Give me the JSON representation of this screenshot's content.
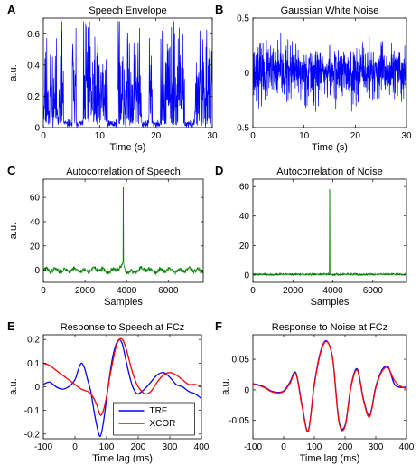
{
  "chart_data": [
    {
      "panel": "A",
      "type": "line",
      "title": "Speech Envelope",
      "xlabel": "Time (s)",
      "ylabel": "a.u.",
      "xlim": [
        0,
        30
      ],
      "ylim": [
        0,
        0.7
      ],
      "xticks": [
        0,
        10,
        20,
        30
      ],
      "yticks": [
        0,
        0.2,
        0.4,
        0.6
      ],
      "series": [
        {
          "color": "#0000ff",
          "kind": "envelope",
          "n": 700,
          "seed": 11,
          "amplitude": 0.6
        }
      ]
    },
    {
      "panel": "B",
      "type": "line",
      "title": "Gaussian White Noise",
      "xlabel": "Time (s)",
      "ylabel": "",
      "xlim": [
        0,
        30
      ],
      "ylim": [
        -0.5,
        0.5
      ],
      "xticks": [
        0,
        10,
        20,
        30
      ],
      "yticks": [
        -0.5,
        0,
        0.5
      ],
      "series": [
        {
          "color": "#0000ff",
          "kind": "noise",
          "n": 900,
          "seed": 23,
          "amplitude": 0.12
        }
      ]
    },
    {
      "panel": "C",
      "type": "line",
      "title": "Autocorrelation of Speech",
      "xlabel": "Samples",
      "ylabel": "a.u.",
      "xlim": [
        0,
        7680
      ],
      "ylim": [
        -10,
        75
      ],
      "xticks": [
        0,
        2000,
        4000,
        6000
      ],
      "yticks": [
        0,
        20,
        40,
        60
      ],
      "series": [
        {
          "color": "#007f00",
          "kind": "autocorr-speech",
          "n": 700,
          "seed": 37,
          "peak": 68,
          "center": 3840
        }
      ]
    },
    {
      "panel": "D",
      "type": "line",
      "title": "Autocorrelation of Noise",
      "xlabel": "Samples",
      "ylabel": "",
      "xlim": [
        0,
        7680
      ],
      "ylim": [
        -5,
        65
      ],
      "xticks": [
        0,
        2000,
        4000,
        6000
      ],
      "yticks": [
        0,
        20,
        40,
        60
      ],
      "series": [
        {
          "color": "#007f00",
          "kind": "autocorr-noise",
          "n": 700,
          "seed": 41,
          "peak": 58,
          "center": 3840
        }
      ]
    },
    {
      "panel": "E",
      "type": "line",
      "title": "Response to Speech at FCz",
      "xlabel": "Time lag (ms)",
      "ylabel": "a.u.",
      "xlim": [
        -100,
        400
      ],
      "ylim": [
        -0.22,
        0.22
      ],
      "xticks": [
        -100,
        0,
        100,
        200,
        300,
        400
      ],
      "yticks": [
        -0.2,
        -0.1,
        0,
        0.1,
        0.2
      ],
      "legend": {
        "position": "lower-center",
        "entries": [
          "TRF",
          "XCOR"
        ]
      },
      "series": [
        {
          "name": "TRF",
          "color": "#0000ff",
          "x": [
            -100,
            -80,
            -60,
            -40,
            -20,
            0,
            10,
            20,
            30,
            40,
            50,
            60,
            70,
            80,
            90,
            100,
            110,
            120,
            130,
            140,
            150,
            160,
            170,
            180,
            190,
            200,
            220,
            240,
            260,
            280,
            300,
            320,
            340,
            360,
            380,
            400
          ],
          "y": [
            0.01,
            0.02,
            0,
            -0.01,
            0,
            0.03,
            0.07,
            0.1,
            0.08,
            0.03,
            -0.02,
            -0.1,
            -0.17,
            -0.21,
            -0.15,
            -0.05,
            0.05,
            0.13,
            0.18,
            0.2,
            0.18,
            0.12,
            0.06,
            0.01,
            -0.02,
            -0.03,
            -0.01,
            0.02,
            0.05,
            0.06,
            0.04,
            0.01,
            0,
            -0.02,
            -0.03,
            -0.05
          ]
        },
        {
          "name": "XCOR",
          "color": "#ff0000",
          "x": [
            -100,
            -80,
            -60,
            -40,
            -20,
            0,
            20,
            40,
            50,
            60,
            70,
            80,
            90,
            100,
            110,
            120,
            130,
            140,
            150,
            160,
            170,
            180,
            190,
            200,
            220,
            240,
            260,
            280,
            300,
            320,
            340,
            360,
            380,
            400
          ],
          "y": [
            0.1,
            0.09,
            0.07,
            0.05,
            0.03,
            0.01,
            -0.01,
            -0.02,
            -0.03,
            -0.05,
            -0.08,
            -0.12,
            -0.1,
            -0.04,
            0.04,
            0.11,
            0.17,
            0.2,
            0.2,
            0.17,
            0.12,
            0.07,
            0.03,
            0,
            -0.03,
            -0.02,
            0.02,
            0.05,
            0.06,
            0.05,
            0.03,
            0.01,
            0.01,
            0
          ]
        }
      ]
    },
    {
      "panel": "F",
      "type": "line",
      "title": "Response to Noise at FCz",
      "xlabel": "Time lag (ms)",
      "ylabel": "a.u.",
      "xlim": [
        -100,
        400
      ],
      "ylim": [
        -0.08,
        0.09
      ],
      "xticks": [
        -100,
        0,
        100,
        200,
        300,
        400
      ],
      "yticks": [
        -0.05,
        0,
        0.05
      ],
      "series": [
        {
          "color": "#0000ff",
          "x": [
            -100,
            -80,
            -60,
            -40,
            -20,
            0,
            20,
            40,
            60,
            80,
            100,
            120,
            140,
            160,
            180,
            200,
            220,
            240,
            260,
            280,
            300,
            320,
            340,
            360,
            380,
            400
          ],
          "y": [
            0.01,
            0.008,
            0.004,
            -0.002,
            -0.004,
            -0.002,
            0.012,
            0.028,
            -0.025,
            -0.067,
            0.01,
            0.062,
            0.08,
            0.05,
            -0.05,
            -0.058,
            0.008,
            0.034,
            -0.015,
            -0.042,
            0.005,
            0.032,
            0.038,
            0.01,
            0.004,
            0.005
          ]
        },
        {
          "color": "#ff0000",
          "x": [
            -100,
            -80,
            -60,
            -40,
            -20,
            0,
            20,
            40,
            60,
            80,
            100,
            120,
            140,
            160,
            180,
            200,
            220,
            240,
            260,
            280,
            300,
            320,
            340,
            360,
            380,
            400
          ],
          "y": [
            0.01,
            0.007,
            0.003,
            -0.003,
            -0.005,
            -0.003,
            0.01,
            0.026,
            -0.027,
            -0.068,
            0.008,
            0.06,
            0.079,
            0.05,
            -0.052,
            -0.06,
            0.006,
            0.032,
            -0.017,
            -0.044,
            0.003,
            0.03,
            0.036,
            0.016,
            0.006,
            0.002
          ]
        }
      ]
    }
  ]
}
